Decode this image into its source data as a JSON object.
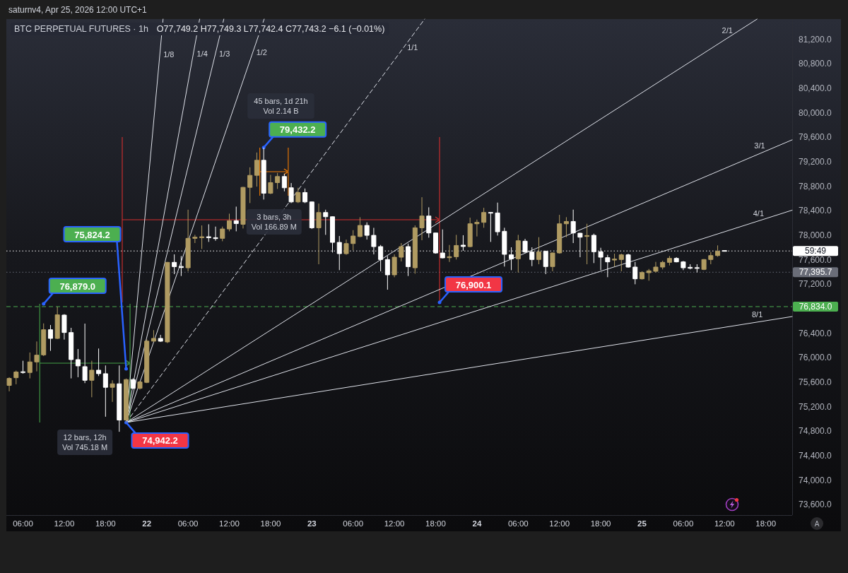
{
  "chart_data": {
    "type": "candlestick",
    "title": "BTC PERPETUAL FUTURES · 1h",
    "subtitle": "O77,749.2 H77,749.3 L77,742.4 C77,743.2 −6.1 (−0.01%)",
    "x": [
      "2026-04-21T04:00",
      "2026-04-21T05:00",
      "2026-04-21T06:00",
      "2026-04-21T07:00",
      "2026-04-21T08:00",
      "2026-04-21T09:00",
      "2026-04-21T10:00",
      "2026-04-21T11:00",
      "2026-04-21T12:00",
      "2026-04-21T13:00",
      "2026-04-21T14:00",
      "2026-04-21T15:00",
      "2026-04-21T16:00",
      "2026-04-21T17:00",
      "2026-04-21T18:00",
      "2026-04-21T19:00",
      "2026-04-21T20:00",
      "2026-04-21T21:00",
      "2026-04-21T22:00",
      "2026-04-21T23:00",
      "2026-04-22T00:00",
      "2026-04-22T01:00",
      "2026-04-22T02:00",
      "2026-04-22T03:00",
      "2026-04-22T04:00",
      "2026-04-22T05:00",
      "2026-04-22T06:00",
      "2026-04-22T07:00",
      "2026-04-22T08:00",
      "2026-04-22T09:00",
      "2026-04-22T10:00",
      "2026-04-22T11:00",
      "2026-04-22T12:00",
      "2026-04-22T13:00",
      "2026-04-22T14:00",
      "2026-04-22T15:00",
      "2026-04-22T16:00",
      "2026-04-22T17:00",
      "2026-04-22T18:00",
      "2026-04-22T19:00",
      "2026-04-22T20:00",
      "2026-04-22T21:00",
      "2026-04-22T22:00",
      "2026-04-22T23:00",
      "2026-04-23T00:00",
      "2026-04-23T01:00",
      "2026-04-23T02:00",
      "2026-04-23T03:00",
      "2026-04-23T04:00",
      "2026-04-23T05:00",
      "2026-04-23T06:00",
      "2026-04-23T07:00",
      "2026-04-23T08:00",
      "2026-04-23T09:00",
      "2026-04-23T10:00",
      "2026-04-23T11:00",
      "2026-04-23T12:00",
      "2026-04-23T13:00",
      "2026-04-23T14:00",
      "2026-04-23T15:00",
      "2026-04-23T16:00",
      "2026-04-23T17:00",
      "2026-04-23T18:00",
      "2026-04-23T19:00",
      "2026-04-23T20:00",
      "2026-04-23T21:00",
      "2026-04-23T22:00",
      "2026-04-23T23:00",
      "2026-04-24T00:00",
      "2026-04-24T01:00",
      "2026-04-24T02:00",
      "2026-04-24T03:00",
      "2026-04-24T04:00",
      "2026-04-24T05:00",
      "2026-04-24T06:00",
      "2026-04-24T07:00",
      "2026-04-24T08:00",
      "2026-04-24T09:00",
      "2026-04-24T10:00",
      "2026-04-24T11:00",
      "2026-04-24T12:00",
      "2026-04-24T13:00",
      "2026-04-24T14:00",
      "2026-04-24T15:00",
      "2026-04-24T16:00",
      "2026-04-24T17:00",
      "2026-04-24T18:00",
      "2026-04-24T19:00",
      "2026-04-24T20:00",
      "2026-04-24T21:00",
      "2026-04-24T22:00",
      "2026-04-24T23:00",
      "2026-04-25T00:00",
      "2026-04-25T01:00",
      "2026-04-25T02:00",
      "2026-04-25T03:00",
      "2026-04-25T04:00",
      "2026-04-25T05:00",
      "2026-04-25T06:00",
      "2026-04-25T07:00",
      "2026-04-25T08:00",
      "2026-04-25T09:00",
      "2026-04-25T10:00",
      "2026-04-25T11:00",
      "2026-04-25T12:00"
    ],
    "ohlc": [
      [
        75547,
        75681,
        75451,
        75662
      ],
      [
        75673,
        75789,
        75566,
        75766
      ],
      [
        75770,
        75950,
        75739,
        75760
      ],
      [
        75758,
        76085,
        75662,
        75931
      ],
      [
        75931,
        76265,
        75777,
        76042
      ],
      [
        76046,
        76560,
        76027,
        76457
      ],
      [
        76457,
        76534,
        76112,
        76315
      ],
      [
        76315,
        76834,
        76304,
        76700
      ],
      [
        76696,
        76711,
        76296,
        76411
      ],
      [
        76411,
        76488,
        75662,
        75969
      ],
      [
        75969,
        76142,
        75681,
        75866
      ],
      [
        75854,
        76557,
        75585,
        75631
      ],
      [
        75631,
        75950,
        75354,
        75796
      ],
      [
        75796,
        76150,
        75700,
        75739
      ],
      [
        75739,
        75873,
        75036,
        75516
      ],
      [
        75516,
        75631,
        75278,
        75574
      ],
      [
        75574,
        75873,
        74790,
        74982
      ],
      [
        74982,
        75660,
        74942.2,
        75643
      ],
      [
        75643,
        75662,
        75489,
        75500
      ],
      [
        75500,
        75620,
        75480,
        75604
      ],
      [
        75597,
        76300,
        75585,
        76270
      ],
      [
        76270,
        76450,
        76258,
        76315
      ],
      [
        76315,
        76373,
        76258,
        76269
      ],
      [
        76258,
        77564,
        76238,
        77557
      ],
      [
        77557,
        77687,
        77364,
        77487
      ],
      [
        77490,
        77660,
        77334,
        77472
      ],
      [
        77468,
        78417,
        77410,
        77949
      ],
      [
        77949,
        78006,
        77872,
        77968
      ],
      [
        77960,
        78160,
        77776,
        77975
      ],
      [
        77975,
        78179,
        77891,
        77960
      ],
      [
        77960,
        78141,
        77910,
        77945
      ],
      [
        77949,
        78141,
        77902,
        78102
      ],
      [
        78102,
        78352,
        78064,
        78237
      ],
      [
        78237,
        78467,
        78064,
        78191
      ],
      [
        78179,
        78790,
        78110,
        78782
      ],
      [
        78782,
        79109,
        78525,
        78978
      ],
      [
        78978,
        79351,
        78794,
        79224
      ],
      [
        79224,
        79432.2,
        78583,
        78686
      ],
      [
        78686,
        78986,
        78671,
        78859
      ],
      [
        78859,
        79017,
        78756,
        78959
      ],
      [
        78959,
        79005,
        78717,
        78775
      ],
      [
        78775,
        78852,
        78525,
        78544
      ],
      [
        78544,
        78775,
        78525,
        78698
      ],
      [
        78698,
        78763,
        78525,
        78544
      ],
      [
        78544,
        78550,
        78102,
        78121
      ],
      [
        78121,
        78517,
        77526,
        78371
      ],
      [
        78371,
        78417,
        78006,
        78302
      ],
      [
        78302,
        78310,
        77718,
        77883
      ],
      [
        77883,
        77987,
        77430,
        77699
      ],
      [
        77699,
        77929,
        77680,
        77864
      ],
      [
        77864,
        78083,
        77756,
        77987
      ],
      [
        77979,
        78294,
        77968,
        78160
      ],
      [
        78160,
        78210,
        77929,
        77998
      ],
      [
        77998,
        78121,
        77687,
        77814
      ],
      [
        77814,
        77841,
        77410,
        77603
      ],
      [
        77603,
        77660,
        77111,
        77353
      ],
      [
        77353,
        77687,
        77314,
        77641
      ],
      [
        77641,
        77872,
        77572,
        77814
      ],
      [
        77814,
        77864,
        77334,
        77487
      ],
      [
        77468,
        78160,
        77372,
        78121
      ],
      [
        78121,
        78621,
        77918,
        78314
      ],
      [
        78314,
        78456,
        77960,
        78037
      ],
      [
        78037,
        78040,
        77699,
        77710
      ],
      [
        77710,
        78095,
        77622,
        77630
      ],
      [
        77633,
        77841,
        77564,
        77649
      ],
      [
        77649,
        78006,
        77603,
        77833
      ],
      [
        77838,
        78000,
        77745,
        77816
      ],
      [
        77814,
        78287,
        77803,
        78187
      ],
      [
        78187,
        78256,
        77980,
        78210
      ],
      [
        78210,
        78448,
        78122,
        78372
      ],
      [
        78372,
        78379,
        77891,
        78364
      ],
      [
        78364,
        78533,
        77995,
        78056
      ],
      [
        78064,
        78122,
        77488,
        77688
      ],
      [
        77680,
        77803,
        77430,
        77615
      ],
      [
        77615,
        78006,
        77392,
        77910
      ],
      [
        77903,
        77941,
        77711,
        77726
      ],
      [
        77726,
        77803,
        77495,
        77603
      ],
      [
        77603,
        77968,
        77526,
        77726
      ],
      [
        77737,
        77749,
        77365,
        77488
      ],
      [
        77488,
        77715,
        77411,
        77711
      ],
      [
        77711,
        78333,
        77699,
        78187
      ],
      [
        78187,
        78295,
        77968,
        78225
      ],
      [
        78225,
        78418,
        77872,
        78037
      ],
      [
        78033,
        78040,
        77641,
        77968
      ],
      [
        77980,
        78187,
        77526,
        77995
      ],
      [
        77999,
        78026,
        77545,
        77730
      ],
      [
        77730,
        77795,
        77430,
        77641
      ],
      [
        77634,
        77680,
        77315,
        77565
      ],
      [
        77595,
        77699,
        77488,
        77611
      ],
      [
        77603,
        77699,
        77411,
        77680
      ],
      [
        77680,
        77699,
        77468,
        77480
      ],
      [
        77480,
        77565,
        77199,
        77288
      ],
      [
        77288,
        77411,
        77276,
        77392
      ],
      [
        77388,
        77449,
        77257,
        77419
      ],
      [
        77411,
        77565,
        77392,
        77480
      ],
      [
        77480,
        77584,
        77442,
        77557
      ],
      [
        77557,
        77661,
        77507,
        77622
      ],
      [
        77622,
        77641,
        77557,
        77565
      ],
      [
        77565,
        77580,
        77430,
        77468
      ],
      [
        77476,
        77526,
        77442,
        77461
      ],
      [
        77470,
        77526,
        77392,
        77465
      ],
      [
        77442,
        77611,
        77430,
        77603
      ],
      [
        77603,
        77726,
        77526,
        77668
      ],
      [
        77668,
        77834,
        77649,
        77737
      ],
      [
        77749.2,
        77749.3,
        77742.4,
        77743.2
      ]
    ],
    "colors": [
      "#b09b62",
      "#b09b62",
      "#ffffff",
      "#b09b62",
      "#b09b62",
      "#b09b62",
      "#ffffff",
      "#b09b62",
      "#ffffff",
      "#ffffff",
      "#ffffff",
      "#ffffff",
      "#b09b62",
      "#ffffff",
      "#ffffff",
      "#b09b62",
      "#ffffff",
      "#b09b62",
      "#ffffff",
      "#b09b62",
      "#b09b62",
      "#b09b62",
      "#ffffff",
      "#b09b62",
      "#ffffff",
      "#ffffff",
      "#b09b62",
      "#b09b62",
      "#b09b62",
      "#ffffff",
      "#ffffff",
      "#b09b62",
      "#b09b62",
      "#ffffff",
      "#b09b62",
      "#b09b62",
      "#b09b62",
      "#ffffff",
      "#b09b62",
      "#b09b62",
      "#ffffff",
      "#ffffff",
      "#b09b62",
      "#ffffff",
      "#ffffff",
      "#b09b62",
      "#ffffff",
      "#ffffff",
      "#ffffff",
      "#b09b62",
      "#b09b62",
      "#b09b62",
      "#ffffff",
      "#ffffff",
      "#ffffff",
      "#ffffff",
      "#b09b62",
      "#b09b62",
      "#ffffff",
      "#b09b62",
      "#b09b62",
      "#ffffff",
      "#ffffff",
      "#ffffff",
      "#b09b62",
      "#b09b62",
      "#ffffff",
      "#b09b62",
      "#b09b62",
      "#b09b62",
      "#ffffff",
      "#ffffff",
      "#ffffff",
      "#ffffff",
      "#b09b62",
      "#ffffff",
      "#ffffff",
      "#b09b62",
      "#ffffff",
      "#b09b62",
      "#b09b62",
      "#b09b62",
      "#ffffff",
      "#ffffff",
      "#b09b62",
      "#ffffff",
      "#ffffff",
      "#ffffff",
      "#b09b62",
      "#b09b62",
      "#ffffff",
      "#ffffff",
      "#b09b62",
      "#b09b62",
      "#b09b62",
      "#b09b62",
      "#b09b62",
      "#ffffff",
      "#ffffff",
      "#ffffff",
      "#ffffff",
      "#b09b62",
      "#b09b62",
      "#b09b62",
      "#ffffff"
    ],
    "series": [
      {
        "type": "line",
        "name": "1/8",
        "color": "#e0e3eb",
        "x": [
          "2026-04-21T21:00",
          "2026-04-22T02:22"
        ],
        "values": [
          74942.2,
          81530
        ]
      },
      {
        "type": "line",
        "name": "1/4",
        "color": "#e0e3eb",
        "x": [
          "2026-04-21T21:00",
          "2026-04-22T07:41"
        ],
        "values": [
          74942.2,
          81530
        ]
      },
      {
        "type": "line",
        "name": "1/3",
        "color": "#e0e3eb",
        "x": [
          "2026-04-21T21:00",
          "2026-04-22T11:12"
        ],
        "values": [
          74942.2,
          81530
        ]
      },
      {
        "type": "line",
        "name": "1/2",
        "color": "#e0e3eb",
        "x": [
          "2026-04-21T21:00",
          "2026-04-22T17:04"
        ],
        "values": [
          74942.2,
          81530
        ]
      },
      {
        "type": "line",
        "name": "1/1",
        "color": "#e0e3eb",
        "line_style": "dashed",
        "x": [
          "2026-04-21T21:00",
          "2026-04-23T16:24"
        ],
        "values": [
          74942.2,
          81530
        ]
      },
      {
        "type": "line",
        "name": "2/1",
        "color": "#e0e3eb",
        "x": [
          "2026-04-21T21:00",
          "2026-04-25T16:44"
        ],
        "values": [
          74942.2,
          81530
        ]
      },
      {
        "type": "line",
        "name": "3/1",
        "color": "#e0e3eb",
        "x": [
          "2026-04-21T21:00",
          "2026-04-25T21:50"
        ],
        "values": [
          74942.2,
          79558
        ]
      },
      {
        "type": "line",
        "name": "4/1",
        "color": "#e0e3eb",
        "x": [
          "2026-04-21T21:00",
          "2026-04-25T21:50"
        ],
        "values": [
          74942.2,
          78409
        ]
      },
      {
        "type": "line",
        "name": "8/1",
        "color": "#e0e3eb",
        "x": [
          "2026-04-21T21:00",
          "2026-04-25T21:50"
        ],
        "values": [
          74942.2,
          76672
        ]
      }
    ],
    "xlim": [
      "2026-04-21T03:35",
      "2026-04-25T21:50"
    ],
    "xticks": [
      {
        "value": "2026-04-21T06:00",
        "label": "06:00"
      },
      {
        "value": "2026-04-21T12:00",
        "label": "12:00"
      },
      {
        "value": "2026-04-21T18:00",
        "label": "18:00"
      },
      {
        "value": "2026-04-22T00:00",
        "label": "22"
      },
      {
        "value": "2026-04-22T06:00",
        "label": "06:00"
      },
      {
        "value": "2026-04-22T12:00",
        "label": "12:00"
      },
      {
        "value": "2026-04-22T18:00",
        "label": "18:00"
      },
      {
        "value": "2026-04-23T00:00",
        "label": "23"
      },
      {
        "value": "2026-04-23T06:00",
        "label": "06:00"
      },
      {
        "value": "2026-04-23T12:00",
        "label": "12:00"
      },
      {
        "value": "2026-04-23T18:00",
        "label": "18:00"
      },
      {
        "value": "2026-04-24T00:00",
        "label": "24"
      },
      {
        "value": "2026-04-24T06:00",
        "label": "06:00"
      },
      {
        "value": "2026-04-24T12:00",
        "label": "12:00"
      },
      {
        "value": "2026-04-24T18:00",
        "label": "18:00"
      },
      {
        "value": "2026-04-25T00:00",
        "label": "25"
      },
      {
        "value": "2026-04-25T06:00",
        "label": "06:00"
      },
      {
        "value": "2026-04-25T12:00",
        "label": "12:00"
      },
      {
        "value": "2026-04-25T18:00",
        "label": "18:00"
      }
    ],
    "ylim": [
      73430,
      81530
    ],
    "yticks": [
      {
        "value": 73600,
        "label": "73,600.0"
      },
      {
        "value": 74000,
        "label": "74,000.0"
      },
      {
        "value": 74400,
        "label": "74,400.0"
      },
      {
        "value": 74800,
        "label": "74,800.0"
      },
      {
        "value": 75200,
        "label": "75,200.0"
      },
      {
        "value": 75600,
        "label": "75,600.0"
      },
      {
        "value": 76000,
        "label": "76,000.0"
      },
      {
        "value": 76400,
        "label": "76,400.0"
      },
      {
        "value": 77200,
        "label": "77,200.0"
      },
      {
        "value": 77600,
        "label": "77,600.0"
      },
      {
        "value": 78000,
        "label": "78,000.0"
      },
      {
        "value": 78400,
        "label": "78,400.0"
      },
      {
        "value": 78800,
        "label": "78,800.0"
      },
      {
        "value": 79200,
        "label": "79,200.0"
      },
      {
        "value": 79600,
        "label": "79,600.0"
      },
      {
        "value": 80000,
        "label": "80,000.0"
      },
      {
        "value": 80400,
        "label": "80,400.0"
      },
      {
        "value": 80800,
        "label": "80,800.0"
      },
      {
        "value": 81200,
        "label": "81,200.0"
      }
    ],
    "ref_lines": [
      {
        "axis": "y",
        "value": 77743.2,
        "color": "#ffffff",
        "line_style": "dotted"
      },
      {
        "axis": "y",
        "value": 77395.7,
        "label": "77,395.7",
        "color": "#6a6d78",
        "line_style": "dotted"
      },
      {
        "axis": "y",
        "value": 76834.0,
        "label": "76,834.0",
        "color": "#4caf50",
        "line_style": "dashed"
      }
    ],
    "annotations": [
      "saturnv4, Apr 25, 2026 12:00 UTC+1",
      "A",
      "45 bars, 1d 21h\nVol 2.14 B",
      "12 bars, 12h\nVol 745.18 M",
      "3 bars, 3h\nVol 166.89 M",
      "75,824.2",
      "59:49",
      "76,900.1",
      {
        "text": "76,879.0",
        "x": "2026-04-21T09:00",
        "y": 76879.0
      },
      {
        "text": "74,942.2",
        "x": "2026-04-21T21:00",
        "y": 74942.2
      },
      {
        "text": "79,432.2",
        "x": "2026-04-22T17:00",
        "y": 79432.2
      }
    ]
  }
}
